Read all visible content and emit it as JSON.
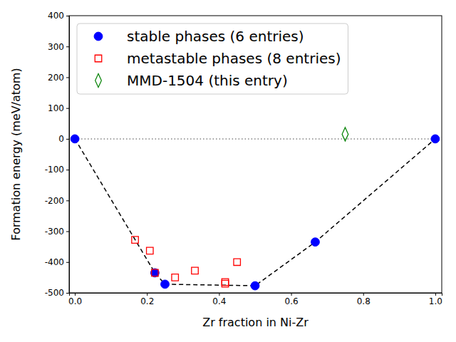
{
  "chart_data": {
    "type": "scatter",
    "x_label": "Zr fraction in Ni-Zr",
    "y_label": "Formation energy (meV/atom)",
    "xlim": [
      -0.016,
      1.018
    ],
    "ylim": [
      -500,
      400
    ],
    "xticks": [
      {
        "value": 0,
        "label": "0.0"
      },
      0.2,
      0.4,
      0.6,
      0.8,
      {
        "value": 1,
        "label": "1.0"
      }
    ],
    "yticks": [
      -500,
      -400,
      -300,
      -200,
      -100,
      0,
      100,
      200,
      300,
      400
    ],
    "grid": false,
    "legend": "upper left",
    "series": [
      {
        "type": "line",
        "color": "#808080",
        "line_style": "dotted",
        "x": [
          0,
          1
        ],
        "values": [
          0,
          0
        ]
      },
      {
        "type": "line",
        "color": "#000000",
        "line_style": "dashed",
        "x": [
          0,
          0.222,
          0.25,
          0.5,
          0.667,
          1
        ],
        "values": [
          0,
          -435,
          -472,
          -477,
          -335,
          0
        ]
      },
      {
        "name": "stable phases (6 entries)",
        "type": "scatter",
        "marker": "circle",
        "color": "#0000ff",
        "x": [
          0,
          0.222,
          0.25,
          0.5,
          0.667,
          1
        ],
        "values": [
          0,
          -435,
          -472,
          -477,
          -335,
          0
        ]
      },
      {
        "name": "metastable phases (8 entries)",
        "type": "scatter",
        "marker": "square",
        "color": "#ff0000",
        "x": [
          0.167,
          0.208,
          0.222,
          0.278,
          0.333,
          0.417,
          0.417,
          0.45
        ],
        "values": [
          -328,
          -363,
          -435,
          -450,
          -428,
          -465,
          -470,
          -400
        ]
      },
      {
        "name": "MMD-1504 (this entry)",
        "type": "scatter",
        "marker": "diamond",
        "color": "#008000",
        "x": [
          0.75
        ],
        "values": [
          15
        ]
      }
    ]
  }
}
